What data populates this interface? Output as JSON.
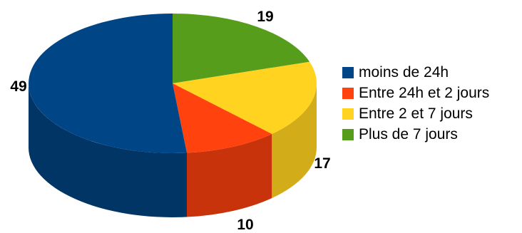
{
  "chart_data": {
    "type": "pie",
    "categories": [
      "moins de 24h",
      "Entre 24h et 2 jours",
      "Entre 2 et 7 jours",
      "Plus de 7 jours"
    ],
    "values": [
      49,
      10,
      17,
      19
    ],
    "colors": [
      "#004586",
      "#ff420e",
      "#ffd320",
      "#579d1c"
    ],
    "side_colors": [
      "#003566",
      "#c8330b",
      "#d2ac19",
      "#457d16"
    ],
    "legend_position": "right",
    "start_angle_deg": -90,
    "order_drawn": "clockwise from top: Plus de 7 jours, Entre 2 et 7 jours, Entre 24h et 2 jours, moins de 24h"
  }
}
